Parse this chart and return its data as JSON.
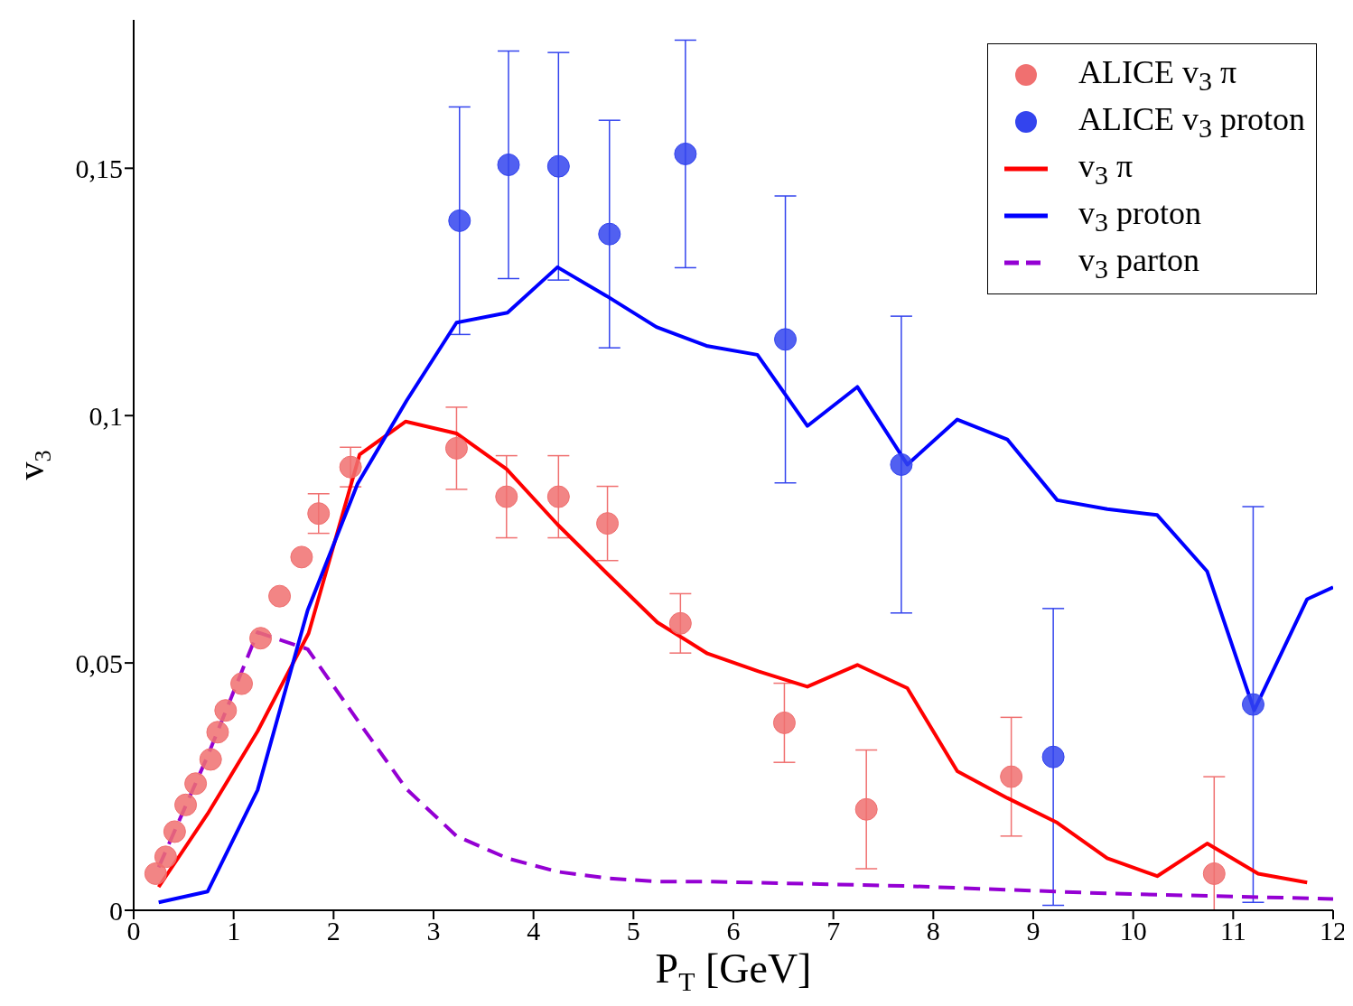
{
  "chart_data": {
    "type": "line",
    "xlabel": "P$_{T}$ [GeV]",
    "ylabel": "v$_{3}$",
    "xlim": [
      0,
      12
    ],
    "xticks": [
      0,
      1,
      2,
      3,
      4,
      5,
      6,
      7,
      8,
      9,
      10,
      11,
      12
    ],
    "ylim": [
      0,
      0.18
    ],
    "yticks": [
      {
        "value": 0,
        "label": "0"
      },
      {
        "value": 0.05,
        "label": "0,05"
      },
      {
        "value": 0.1,
        "label": "0,1"
      },
      {
        "value": 0.15,
        "label": "0,15"
      }
    ],
    "grid": false,
    "legend": "top right",
    "series": [
      {
        "type": "scatter",
        "name": "ALICE v$_{3}$ π",
        "color": "#f07070",
        "marker": "circle",
        "x": [
          0.22,
          0.32,
          0.41,
          0.52,
          0.62,
          0.77,
          0.84,
          0.92,
          1.08,
          1.27,
          1.46,
          1.68,
          1.85,
          2.17,
          3.23,
          3.73,
          4.25,
          4.74,
          5.47,
          6.51,
          7.33,
          8.78,
          10.81
        ],
        "values": [
          0.0074,
          0.0108,
          0.0159,
          0.0213,
          0.0256,
          0.0305,
          0.036,
          0.0404,
          0.0458,
          0.055,
          0.0635,
          0.0714,
          0.0802,
          0.0896,
          0.0934,
          0.0836,
          0.0836,
          0.0782,
          0.058,
          0.0379,
          0.0204,
          0.027,
          0.0074
        ],
        "errors": [
          null,
          null,
          null,
          null,
          null,
          null,
          null,
          null,
          null,
          null,
          null,
          null,
          0.004,
          0.004,
          0.0083,
          0.0083,
          0.0083,
          0.0075,
          0.006,
          0.008,
          0.012,
          0.012,
          [
            0,
            0.027
          ]
        ]
      },
      {
        "type": "scatter",
        "name": "ALICE v$_{3}$ proton",
        "color": "#3344ee",
        "marker": "circle",
        "x": [
          3.26,
          3.75,
          4.25,
          4.76,
          5.52,
          6.52,
          7.68,
          9.2,
          11.2
        ],
        "values": [
          0.1394,
          0.1507,
          0.1504,
          0.1367,
          0.1529,
          0.1154,
          0.0901,
          0.031,
          0.0416
        ],
        "errors": [
          0.023,
          0.023,
          0.023,
          0.023,
          0.023,
          0.029,
          0.03,
          0.03,
          0.04
        ]
      },
      {
        "type": "line",
        "name": "v$_{3}$ π",
        "color": "#ff0000",
        "line_style": "solid",
        "x": [
          0.25,
          0.74,
          1.24,
          1.75,
          2.26,
          2.72,
          3.23,
          3.73,
          4.24,
          4.74,
          5.24,
          5.74,
          6.25,
          6.74,
          7.24,
          7.74,
          8.24,
          8.74,
          9.24,
          9.74,
          10.24,
          10.74,
          11.25,
          11.74
        ],
        "values": [
          0.0047,
          0.0195,
          0.0362,
          0.056,
          0.0921,
          0.0988,
          0.0964,
          0.0892,
          0.078,
          0.068,
          0.0582,
          0.0519,
          0.0483,
          0.0452,
          0.0496,
          0.0449,
          0.0281,
          0.0227,
          0.0177,
          0.0105,
          0.0069,
          0.0135,
          0.0074,
          0.0056
        ]
      },
      {
        "type": "line",
        "name": "v$_{3}$ proton",
        "color": "#0000ff",
        "line_style": "solid",
        "x": [
          0.25,
          0.74,
          1.24,
          1.74,
          2.24,
          2.73,
          3.23,
          3.74,
          4.24,
          4.73,
          5.23,
          5.73,
          6.24,
          6.74,
          7.24,
          7.74,
          8.24,
          8.74,
          9.24,
          9.74,
          10.24,
          10.74,
          11.21,
          11.74,
          12
        ],
        "values": [
          0.0016,
          0.0038,
          0.0243,
          0.0606,
          0.0862,
          0.103,
          0.1188,
          0.1208,
          0.13,
          0.1242,
          0.1179,
          0.1141,
          0.1123,
          0.0979,
          0.1058,
          0.0901,
          0.0992,
          0.0952,
          0.0829,
          0.0811,
          0.0799,
          0.0685,
          0.0404,
          0.0629,
          0.0653
        ]
      },
      {
        "type": "line",
        "name": "v$_{3}$ parton",
        "color": "#9400d3",
        "line_style": "dashed",
        "x": [
          0.25,
          0.74,
          1.24,
          1.74,
          2.24,
          2.73,
          3.23,
          3.74,
          4.24,
          4.73,
          5.23,
          5.73,
          7.74,
          9.74,
          12
        ],
        "values": [
          0.0087,
          0.0312,
          0.0562,
          0.0528,
          0.0384,
          0.0245,
          0.015,
          0.0105,
          0.0078,
          0.0065,
          0.0058,
          0.0058,
          0.0049,
          0.0034,
          0.0023
        ]
      }
    ]
  }
}
